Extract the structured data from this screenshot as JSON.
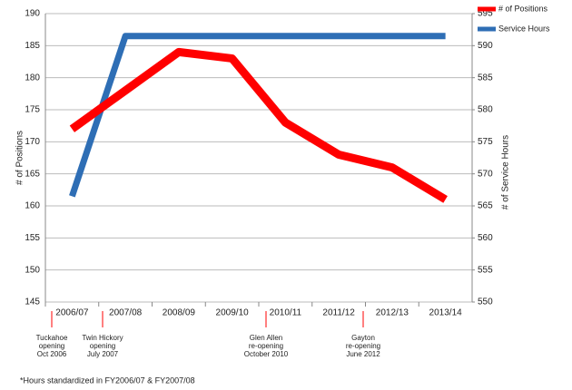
{
  "chart_data": {
    "type": "line",
    "categories": [
      "2006/07",
      "2007/08",
      "2008/09",
      "2009/10",
      "2010/11",
      "2011/12",
      "2012/13",
      "2013/14"
    ],
    "series": [
      {
        "name": "# of Positions",
        "color": "#ff0000",
        "values": [
          172,
          178,
          184,
          183,
          173,
          168,
          166,
          161
        ]
      },
      {
        "name": "Service Hours",
        "color": "#2e6eb5",
        "axis": "y2",
        "values": [
          566.5,
          591.5,
          591.5,
          591.5,
          591.5,
          591.5,
          591.5,
          591.5
        ]
      }
    ],
    "ylabel": "# of Positions",
    "y2label": "# of Service Hours",
    "ylim": [
      145,
      190
    ],
    "yticks": [
      145,
      150,
      155,
      160,
      165,
      170,
      175,
      180,
      185,
      190
    ],
    "y2lim": [
      550,
      595
    ],
    "y2ticks": [
      550,
      555,
      560,
      565,
      570,
      575,
      580,
      585,
      590,
      595
    ],
    "grid": true,
    "legend": "top-right",
    "annotations": [
      [
        "Tuckahoe",
        "opening",
        "Oct 2006"
      ],
      [
        "Twin Hickory",
        "opening",
        "July 2007"
      ],
      [
        "Glen Allen",
        "re-opening",
        "October 2010"
      ],
      [
        "Gayton",
        "re-opening",
        "June 2012"
      ]
    ],
    "footnote": "*Hours standardized in FY2006/07 & FY2007/08"
  }
}
